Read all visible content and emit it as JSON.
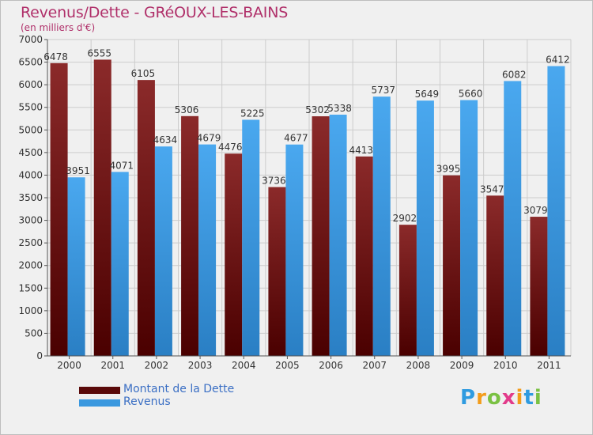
{
  "title": "Revenus/Dette - GRéOUX-LES-BAINS",
  "subtitle": "(en milliers d'€)",
  "logo": {
    "letters": [
      "P",
      "r",
      "o",
      "x",
      "i",
      "t",
      "i"
    ],
    "colors": [
      "#2f9be0",
      "#f39c1a",
      "#7ac143",
      "#e23b8a",
      "#f39c1a",
      "#2f9be0",
      "#7ac143"
    ]
  },
  "colors": {
    "dette": "#7a2020",
    "revenus": "#3a98df",
    "title": "#b0306a"
  },
  "chart_data": {
    "type": "bar",
    "title": "Revenus/Dette - GRéOUX-LES-BAINS",
    "ylabel": "(en milliers d'€)",
    "xlabel": "",
    "ylim": [
      0,
      7000
    ],
    "yticks": [
      0,
      500,
      1000,
      1500,
      2000,
      2500,
      3000,
      3500,
      4000,
      4500,
      5000,
      5500,
      6000,
      6500,
      7000
    ],
    "grid": true,
    "legend": "bottom-left",
    "categories": [
      "2000",
      "2001",
      "2002",
      "2003",
      "2004",
      "2005",
      "2006",
      "2007",
      "2008",
      "2009",
      "2010",
      "2011"
    ],
    "series": [
      {
        "name": "Montant de la Dette",
        "values": [
          6478,
          6555,
          6105,
          5306,
          4476,
          3736,
          5302,
          4413,
          2902,
          3995,
          3547,
          3079
        ]
      },
      {
        "name": "Revenus",
        "values": [
          3951,
          4071,
          4634,
          4679,
          5225,
          4677,
          5338,
          5737,
          5649,
          5660,
          6082,
          6412
        ]
      }
    ]
  }
}
